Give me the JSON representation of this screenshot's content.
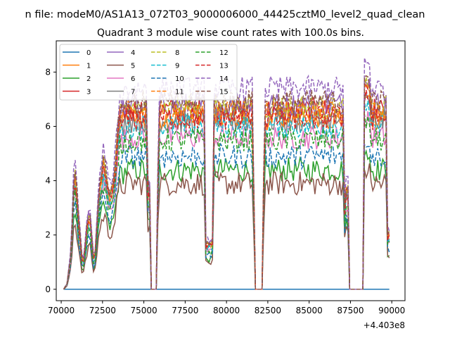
{
  "figure": {
    "suptitle": "n file: modeM0/AS1A13_072T03_9000006000_44425cztM0_level2_quad_clean"
  },
  "chart_data": {
    "type": "line",
    "title": "Quadrant 3 module wise count rates with 100.0s bins.",
    "xlabel": "",
    "ylabel": "",
    "x_offset_label": "+4.403e8",
    "xlim": [
      69700,
      90800
    ],
    "ylim": [
      -0.42,
      9.15
    ],
    "xticks": [
      70000,
      72500,
      75000,
      77500,
      80000,
      82500,
      85000,
      87500,
      90000
    ],
    "yticks": [
      0,
      2,
      4,
      6,
      8
    ],
    "grid": false,
    "legend": {
      "location": "upper left",
      "columns": 4
    },
    "x_range": [
      70150,
      89850
    ],
    "gaps": [
      [
        75400,
        75750
      ],
      [
        81750,
        82150
      ],
      [
        87400,
        88250
      ]
    ],
    "series": [
      {
        "name": "0",
        "color": "#1f77b4",
        "dashed": false,
        "level": 0.0
      },
      {
        "name": "1",
        "color": "#ff7f0e",
        "dashed": false,
        "level": 6.3
      },
      {
        "name": "2",
        "color": "#2ca02c",
        "dashed": false,
        "level": 4.4
      },
      {
        "name": "3",
        "color": "#d62728",
        "dashed": false,
        "level": 6.6
      },
      {
        "name": "4",
        "color": "#9467bd",
        "dashed": false,
        "level": 6.8
      },
      {
        "name": "5",
        "color": "#8c564b",
        "dashed": false,
        "level": 3.9
      },
      {
        "name": "6",
        "color": "#e377c2",
        "dashed": false,
        "level": 5.6
      },
      {
        "name": "7",
        "color": "#7f7f7f",
        "dashed": false,
        "level": 6.2
      },
      {
        "name": "8",
        "color": "#bcbd22",
        "dashed": true,
        "level": 6.7
      },
      {
        "name": "9",
        "color": "#17becf",
        "dashed": true,
        "level": 6.0
      },
      {
        "name": "10",
        "color": "#1f77b4",
        "dashed": true,
        "level": 4.9
      },
      {
        "name": "11",
        "color": "#ff7f0e",
        "dashed": true,
        "level": 6.5
      },
      {
        "name": "12",
        "color": "#2ca02c",
        "dashed": true,
        "level": 5.5
      },
      {
        "name": "13",
        "color": "#d62728",
        "dashed": true,
        "level": 6.3
      },
      {
        "name": "14",
        "color": "#9467bd",
        "dashed": true,
        "level": 7.4
      },
      {
        "name": "15",
        "color": "#8c564b",
        "dashed": true,
        "level": 6.9
      }
    ]
  }
}
